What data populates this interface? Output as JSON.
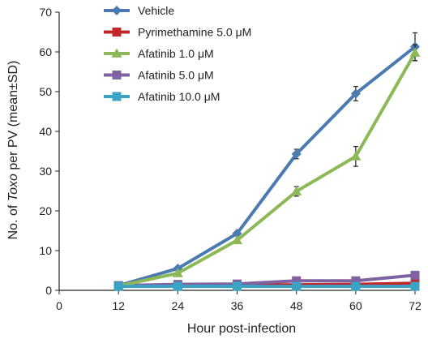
{
  "chart_data": {
    "type": "line",
    "title": "",
    "xlabel": "Hour post-infection",
    "ylabel": [
      "No. of ",
      "Toxo",
      " per PV (mean",
      "±",
      "SD)"
    ],
    "x": [
      12,
      24,
      36,
      48,
      60,
      72
    ],
    "xticks": [
      "0",
      "12",
      "24",
      "36",
      "48",
      "60",
      "72"
    ],
    "xlim": [
      0,
      72
    ],
    "yticks": [
      "0",
      "10",
      "20",
      "30",
      "40",
      "50",
      "60",
      "70"
    ],
    "ylim": [
      0,
      70
    ],
    "grid": false,
    "legend_position": "top-left",
    "series": [
      {
        "name": "Vehicle",
        "color": "#4a7ab0",
        "marker": "diamond",
        "values": [
          1.2,
          5.5,
          14.3,
          34.3,
          49.5,
          61.3
        ],
        "errors": [
          0,
          0,
          0,
          1.2,
          1.8,
          3.5
        ]
      },
      {
        "name": "Pyrimethamine 5.0 μM",
        "color": "#c0282c",
        "marker": "square",
        "values": [
          1.1,
          1.2,
          1.3,
          1.4,
          1.5,
          1.8
        ],
        "errors": [
          0,
          0,
          0,
          0,
          0,
          0
        ]
      },
      {
        "name": "Afatinib 1.0 μM",
        "color": "#8db858",
        "marker": "triangle",
        "values": [
          1.1,
          4.3,
          12.6,
          24.9,
          33.7,
          59.8
        ],
        "errors": [
          0,
          0,
          0,
          1.2,
          2.5,
          2.0
        ]
      },
      {
        "name": "Afatinib 5.0 μM",
        "color": "#7e62a1",
        "marker": "square",
        "values": [
          1.2,
          1.5,
          1.6,
          2.4,
          2.4,
          3.8
        ],
        "errors": [
          0,
          0,
          0,
          0,
          0,
          0
        ]
      },
      {
        "name": "Afatinib 10.0 μM",
        "color": "#3ba4c4",
        "marker": "square",
        "values": [
          1.0,
          1.0,
          1.0,
          1.0,
          1.0,
          1.0
        ],
        "errors": [
          0,
          0,
          0,
          0,
          0,
          0
        ]
      }
    ]
  }
}
